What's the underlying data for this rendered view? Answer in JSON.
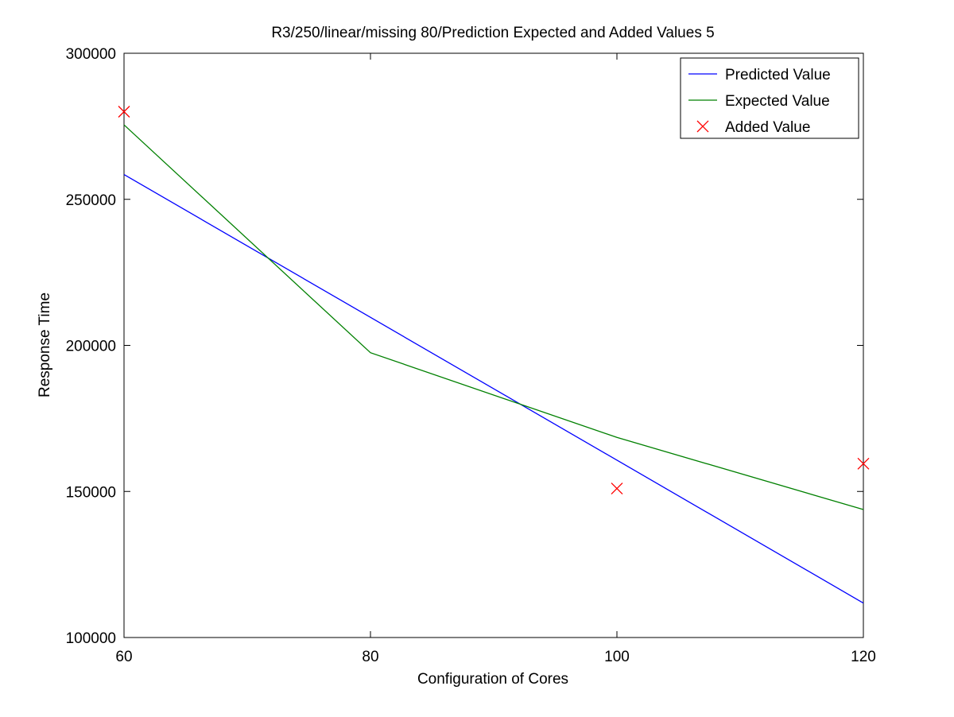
{
  "chart_data": {
    "type": "line",
    "title": "R3/250/linear/missing 80/Prediction Expected and Added Values 5",
    "xlabel": "Configuration of Cores",
    "ylabel": "Response Time",
    "xlim": [
      60,
      120
    ],
    "ylim": [
      100000,
      300000
    ],
    "xticks": [
      60,
      80,
      100,
      120
    ],
    "yticks": [
      100000,
      150000,
      200000,
      250000,
      300000
    ],
    "xtick_labels": [
      "60",
      "80",
      "100",
      "120"
    ],
    "ytick_labels": [
      "100000",
      "150000",
      "200000",
      "250000",
      "300000"
    ],
    "grid": false,
    "legend_position": "top-right",
    "series": [
      {
        "name": "Predicted Value",
        "kind": "line",
        "color": "#0000ff",
        "x": [
          60,
          120
        ],
        "y": [
          258500,
          111800
        ]
      },
      {
        "name": "Expected Value",
        "kind": "line",
        "color": "#008000",
        "x": [
          60,
          80,
          100,
          120
        ],
        "y": [
          275500,
          197500,
          168500,
          143800
        ]
      },
      {
        "name": "Added Value",
        "kind": "marker",
        "marker": "x",
        "color": "#ff0000",
        "x": [
          60,
          100,
          120
        ],
        "y": [
          280000,
          151000,
          159500
        ]
      }
    ]
  }
}
